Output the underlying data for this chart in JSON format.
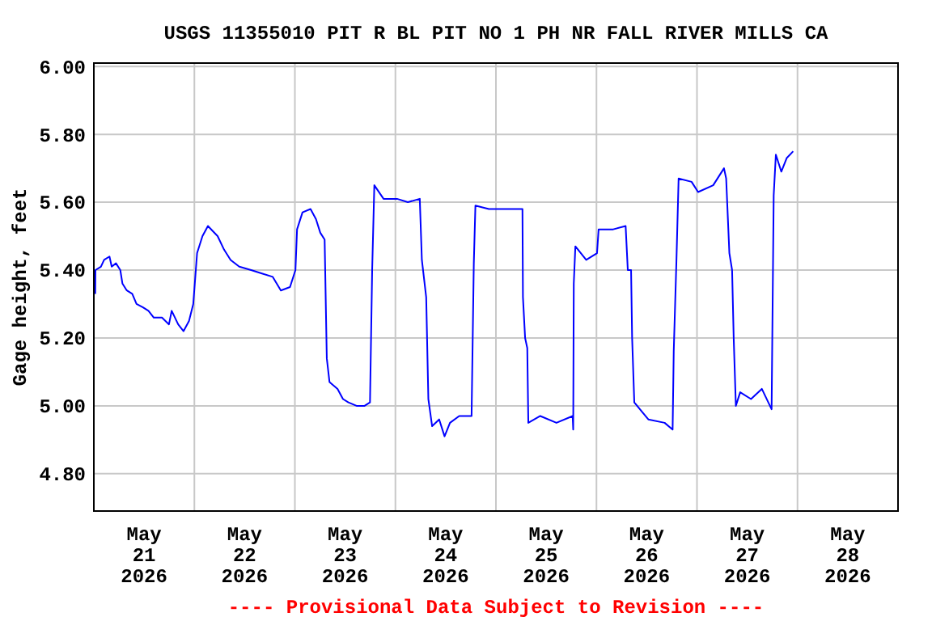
{
  "chart_data": {
    "type": "line",
    "title": "USGS 11355010 PIT R BL PIT NO 1 PH NR FALL RIVER MILLS CA",
    "ylabel": "Gage height, feet",
    "annotations": [
      "---- Provisional Data Subject to Revision ----"
    ],
    "xlim": [
      "2026-05-21T00:00",
      "2026-05-29T00:00"
    ],
    "xticks": [
      {
        "value": "2026-05-21T00:00",
        "label": null
      },
      {
        "value": "2026-05-21T12:00",
        "label": "May 21 2026"
      },
      {
        "value": "2026-05-22T00:00",
        "label": null
      },
      {
        "value": "2026-05-22T12:00",
        "label": "May 22 2026"
      },
      {
        "value": "2026-05-23T00:00",
        "label": null
      },
      {
        "value": "2026-05-23T12:00",
        "label": "May 23 2026"
      },
      {
        "value": "2026-05-24T00:00",
        "label": null
      },
      {
        "value": "2026-05-24T12:00",
        "label": "May 24 2026"
      },
      {
        "value": "2026-05-25T00:00",
        "label": null
      },
      {
        "value": "2026-05-25T12:00",
        "label": "May 25 2026"
      },
      {
        "value": "2026-05-26T00:00",
        "label": null
      },
      {
        "value": "2026-05-26T12:00",
        "label": "May 26 2026"
      },
      {
        "value": "2026-05-27T00:00",
        "label": null
      },
      {
        "value": "2026-05-27T12:00",
        "label": "May 27 2026"
      },
      {
        "value": "2026-05-28T00:00",
        "label": null
      },
      {
        "value": "2026-05-28T12:00",
        "label": "May 28 2026"
      },
      {
        "value": "2026-05-29T00:00",
        "label": null
      }
    ],
    "ylim": [
      4.69,
      6.01
    ],
    "yticks": [
      {
        "value": 4.8,
        "label": "4.80"
      },
      {
        "value": 5.0,
        "label": "5.00"
      },
      {
        "value": 5.2,
        "label": "5.20"
      },
      {
        "value": 5.4,
        "label": "5.40"
      },
      {
        "value": 5.6,
        "label": "5.60"
      },
      {
        "value": 5.8,
        "label": "5.80"
      },
      {
        "value": 6.0,
        "label": "6.00"
      }
    ],
    "grid": true,
    "marker": "none",
    "line_style": "solid",
    "series": [
      {
        "color": "#0000ff",
        "x": [
          "2026-05-21T00:20",
          "2026-05-21T00:23",
          "2026-05-21T01:41",
          "2026-05-21T02:27",
          "2026-05-21T03:44",
          "2026-05-21T04:16",
          "2026-05-21T05:17",
          "2026-05-21T06:19",
          "2026-05-21T06:50",
          "2026-05-21T07:52",
          "2026-05-21T09:10",
          "2026-05-21T10:11",
          "2026-05-21T11:44",
          "2026-05-21T13:02",
          "2026-05-21T14:19",
          "2026-05-21T16:16",
          "2026-05-21T17:56",
          "2026-05-21T18:35",
          "2026-05-21T20:08",
          "2026-05-21T21:25",
          "2026-05-21T22:43",
          "2026-05-21T23:44",
          "2026-05-22T00:39",
          "2026-05-22T01:56",
          "2026-05-22T03:14",
          "2026-05-22T05:33",
          "2026-05-22T07:06",
          "2026-05-22T08:39",
          "2026-05-22T10:43",
          "2026-05-22T13:33",
          "2026-05-22T16:08",
          "2026-05-22T18:43",
          "2026-05-22T20:39",
          "2026-05-22T22:50",
          "2026-05-23T00:08",
          "2026-05-23T00:31",
          "2026-05-23T01:49",
          "2026-05-23T03:44",
          "2026-05-23T05:02",
          "2026-05-23T06:04",
          "2026-05-23T07:06",
          "2026-05-23T07:37",
          "2026-05-23T08:16",
          "2026-05-23T10:11",
          "2026-05-23T11:29",
          "2026-05-23T12:46",
          "2026-05-23T14:43",
          "2026-05-23T16:38",
          "2026-05-23T17:56",
          "2026-05-23T18:27",
          "2026-05-23T18:58",
          "2026-05-23T21:10",
          "2026-05-24T00:23",
          "2026-05-24T02:58",
          "2026-05-24T05:49",
          "2026-05-24T06:19",
          "2026-05-24T07:21",
          "2026-05-24T07:52",
          "2026-05-24T08:46",
          "2026-05-24T10:27",
          "2026-05-24T11:44",
          "2026-05-24T13:02",
          "2026-05-24T15:14",
          "2026-05-24T18:11",
          "2026-05-24T18:43",
          "2026-05-24T19:06",
          "2026-05-24T22:19",
          "2026-05-25T00:16",
          "2026-05-25T04:47",
          "2026-05-25T06:20",
          "2026-05-25T06:27",
          "2026-05-25T06:58",
          "2026-05-25T07:29",
          "2026-05-25T07:44",
          "2026-05-25T10:35",
          "2026-05-25T14:27",
          "2026-05-25T18:19",
          "2026-05-25T18:27",
          "2026-05-25T18:35",
          "2026-05-25T18:58",
          "2026-05-25T21:33",
          "2026-05-26T00:08",
          "2026-05-26T00:31",
          "2026-05-26T04:00",
          "2026-05-26T06:58",
          "2026-05-26T07:29",
          "2026-05-26T08:16",
          "2026-05-26T08:31",
          "2026-05-26T09:02",
          "2026-05-26T12:23",
          "2026-05-26T16:16",
          "2026-05-26T18:11",
          "2026-05-26T18:27",
          "2026-05-26T19:06",
          "2026-05-26T19:37",
          "2026-05-26T22:43",
          "2026-05-27T00:16",
          "2026-05-27T03:52",
          "2026-05-27T06:27",
          "2026-05-27T06:58",
          "2026-05-27T07:44",
          "2026-05-27T08:23",
          "2026-05-27T08:46",
          "2026-05-27T09:17",
          "2026-05-27T10:19",
          "2026-05-27T12:54",
          "2026-05-27T15:29",
          "2026-05-27T17:49",
          "2026-05-27T18:19",
          "2026-05-27T18:50",
          "2026-05-27T20:08",
          "2026-05-27T21:25",
          "2026-05-27T22:58"
        ],
        "values": [
          5.33,
          5.4,
          5.41,
          5.43,
          5.44,
          5.41,
          5.42,
          5.4,
          5.36,
          5.34,
          5.33,
          5.3,
          5.29,
          5.28,
          5.26,
          5.26,
          5.24,
          5.28,
          5.24,
          5.22,
          5.25,
          5.3,
          5.45,
          5.5,
          5.53,
          5.5,
          5.46,
          5.43,
          5.41,
          5.4,
          5.39,
          5.38,
          5.34,
          5.35,
          5.4,
          5.52,
          5.57,
          5.58,
          5.55,
          5.51,
          5.49,
          5.14,
          5.07,
          5.05,
          5.02,
          5.01,
          5.0,
          5.0,
          5.01,
          5.4,
          5.65,
          5.61,
          5.61,
          5.6,
          5.61,
          5.43,
          5.32,
          5.02,
          4.94,
          4.96,
          4.91,
          4.95,
          4.97,
          4.97,
          5.42,
          5.59,
          5.58,
          5.58,
          5.58,
          5.58,
          5.32,
          5.2,
          5.17,
          4.95,
          4.97,
          4.95,
          4.97,
          4.93,
          5.36,
          5.47,
          5.43,
          5.45,
          5.52,
          5.52,
          5.53,
          5.4,
          5.4,
          5.2,
          5.01,
          4.96,
          4.95,
          4.93,
          5.16,
          5.43,
          5.67,
          5.66,
          5.63,
          5.65,
          5.7,
          5.67,
          5.45,
          5.4,
          5.2,
          5.0,
          5.04,
          5.02,
          5.05,
          4.99,
          5.62,
          5.74,
          5.69,
          5.73,
          5.75
        ]
      }
    ]
  }
}
